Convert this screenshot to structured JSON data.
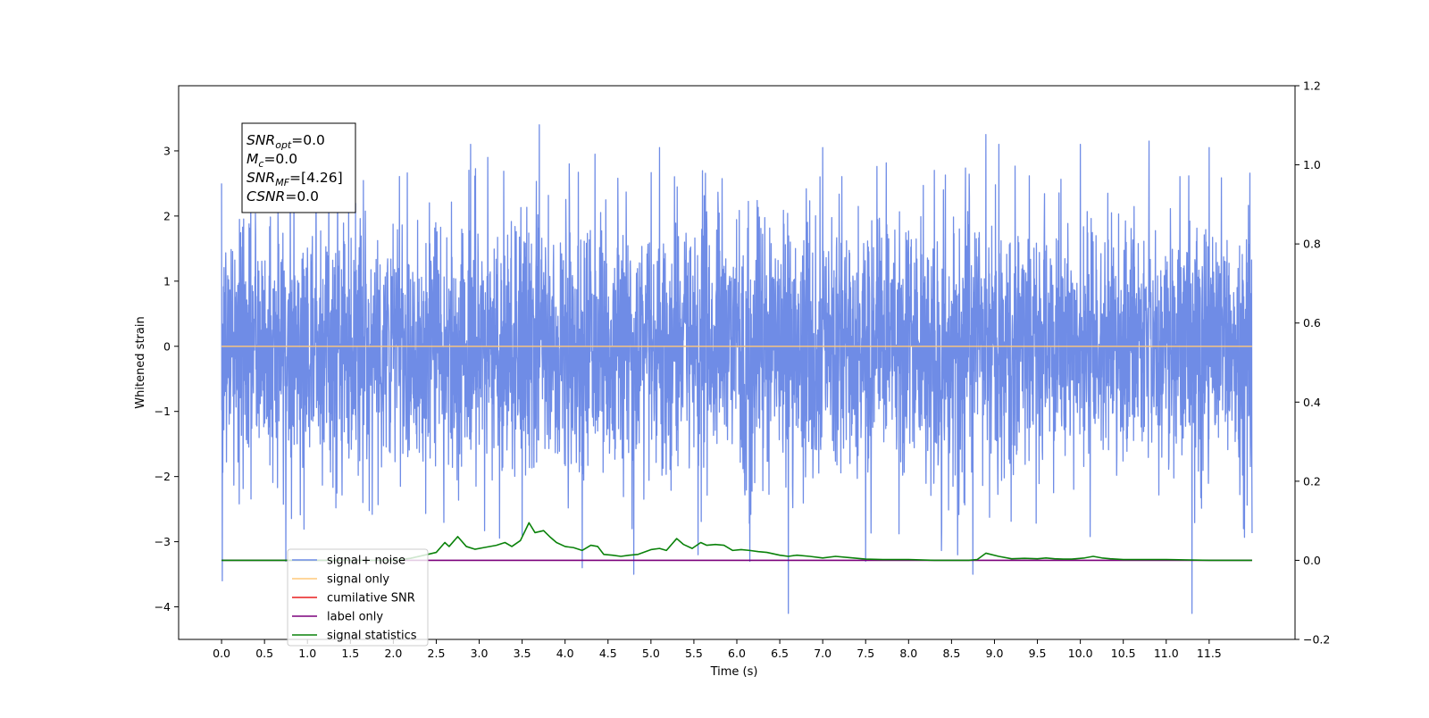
{
  "chart_data": {
    "type": "line",
    "xlabel": "Time (s)",
    "ylabel": "Whitened strain",
    "xlim": [
      -0.5,
      12.5
    ],
    "ylim": [
      -4.5,
      4.0
    ],
    "y2lim": [
      -0.2,
      1.2
    ],
    "x_ticks": [
      0.0,
      0.5,
      1.0,
      1.5,
      2.0,
      2.5,
      3.0,
      3.5,
      4.0,
      4.5,
      5.0,
      5.5,
      6.0,
      6.5,
      7.0,
      7.5,
      8.0,
      8.5,
      9.0,
      9.5,
      10.0,
      10.5,
      11.0,
      11.5
    ],
    "x_tick_labels": [
      "0.0",
      "0.5",
      "1.0",
      "1.5",
      "2.0",
      "2.5",
      "3.0",
      "3.5",
      "4.0",
      "4.5",
      "5.0",
      "5.5",
      "6.0",
      "6.5",
      "7.0",
      "7.5",
      "8.0",
      "8.5",
      "9.0",
      "9.5",
      "10.0",
      "10.5",
      "11.0",
      "11.5"
    ],
    "y_ticks": [
      -4,
      -3,
      -2,
      -1,
      0,
      1,
      2,
      3
    ],
    "y_tick_labels": [
      "−4",
      "−3",
      "−2",
      "−1",
      "0",
      "1",
      "2",
      "3"
    ],
    "y2_ticks": [
      -0.2,
      0.0,
      0.2,
      0.4,
      0.6,
      0.8,
      1.0,
      1.2
    ],
    "y2_tick_labels": [
      "−0.2",
      "0.0",
      "0.2",
      "0.4",
      "0.6",
      "0.8",
      "1.0",
      "1.2"
    ],
    "legend_placement": "lower-left",
    "grid": false,
    "annotation": {
      "lines": [
        {
          "symbol": "SNR",
          "sub": "opt",
          "value": "=0.0"
        },
        {
          "symbol": "M",
          "sub": "c",
          "value": "=0.0"
        },
        {
          "symbol": "SNR",
          "sub": "MF",
          "value": "=[4.26]"
        },
        {
          "symbol": "CSNR",
          "sub": "",
          "value": "=0.0"
        }
      ]
    },
    "series": [
      {
        "name": "signal+ noise",
        "color": "#6f8ce6",
        "axis": "left",
        "kind": "noise",
        "x_range": [
          0.0,
          12.0
        ],
        "sigma": 1.0,
        "peaks": [
          [
            0.0,
            2.5
          ],
          [
            0.01,
            -3.6
          ],
          [
            0.75,
            -3.3
          ],
          [
            1.1,
            2.8
          ],
          [
            1.35,
            3.05
          ],
          [
            2.9,
            3.1
          ],
          [
            3.1,
            2.9
          ],
          [
            3.5,
            -2.9
          ],
          [
            3.7,
            3.4
          ],
          [
            4.05,
            2.8
          ],
          [
            4.2,
            -3.4
          ],
          [
            4.35,
            2.95
          ],
          [
            4.8,
            3.6
          ],
          [
            4.8,
            -3.5
          ],
          [
            5.1,
            3.05
          ],
          [
            5.55,
            -3.2
          ],
          [
            6.15,
            3.05
          ],
          [
            6.15,
            -3.3
          ],
          [
            6.6,
            -4.1
          ],
          [
            7.0,
            3.05
          ],
          [
            7.5,
            3.4
          ],
          [
            7.5,
            -3.3
          ],
          [
            8.3,
            2.7
          ],
          [
            8.75,
            -3.5
          ],
          [
            8.9,
            3.25
          ],
          [
            9.05,
            3.1
          ],
          [
            10.0,
            3.1
          ],
          [
            10.8,
            3.15
          ],
          [
            11.3,
            -4.1
          ],
          [
            11.5,
            3.05
          ],
          [
            11.9,
            2.6
          ],
          [
            11.9,
            -2.8
          ]
        ]
      },
      {
        "name": "signal only",
        "color": "#ffc87a",
        "axis": "left",
        "kind": "constant",
        "value": 0.0,
        "x_range": [
          0.0,
          12.0
        ]
      },
      {
        "name": "cumilative SNR",
        "color": "#e81e1e",
        "axis": "right",
        "kind": "none",
        "points": []
      },
      {
        "name": "label only",
        "color": "#7b007b",
        "axis": "right",
        "kind": "line",
        "points": [
          [
            0.0,
            0.0
          ],
          [
            12.0,
            0.0
          ]
        ]
      },
      {
        "name": "signal statistics",
        "color": "#0a820a",
        "axis": "right",
        "kind": "line",
        "points": [
          [
            0.0,
            0.0
          ],
          [
            0.5,
            0.0
          ],
          [
            1.0,
            0.0
          ],
          [
            1.5,
            0.0
          ],
          [
            2.0,
            0.0
          ],
          [
            2.2,
            0.005
          ],
          [
            2.4,
            0.015
          ],
          [
            2.5,
            0.02
          ],
          [
            2.6,
            0.045
          ],
          [
            2.65,
            0.035
          ],
          [
            2.75,
            0.06
          ],
          [
            2.85,
            0.035
          ],
          [
            2.95,
            0.028
          ],
          [
            3.05,
            0.032
          ],
          [
            3.2,
            0.038
          ],
          [
            3.3,
            0.045
          ],
          [
            3.38,
            0.035
          ],
          [
            3.48,
            0.05
          ],
          [
            3.58,
            0.095
          ],
          [
            3.65,
            0.07
          ],
          [
            3.75,
            0.075
          ],
          [
            3.82,
            0.06
          ],
          [
            3.9,
            0.045
          ],
          [
            4.0,
            0.035
          ],
          [
            4.1,
            0.032
          ],
          [
            4.2,
            0.025
          ],
          [
            4.3,
            0.038
          ],
          [
            4.38,
            0.035
          ],
          [
            4.45,
            0.015
          ],
          [
            4.55,
            0.013
          ],
          [
            4.65,
            0.01
          ],
          [
            4.75,
            0.013
          ],
          [
            4.85,
            0.015
          ],
          [
            5.0,
            0.027
          ],
          [
            5.1,
            0.03
          ],
          [
            5.18,
            0.025
          ],
          [
            5.3,
            0.055
          ],
          [
            5.38,
            0.04
          ],
          [
            5.48,
            0.03
          ],
          [
            5.58,
            0.045
          ],
          [
            5.65,
            0.038
          ],
          [
            5.75,
            0.04
          ],
          [
            5.85,
            0.038
          ],
          [
            5.95,
            0.025
          ],
          [
            6.05,
            0.027
          ],
          [
            6.15,
            0.025
          ],
          [
            6.25,
            0.022
          ],
          [
            6.35,
            0.02
          ],
          [
            6.5,
            0.013
          ],
          [
            6.6,
            0.01
          ],
          [
            6.7,
            0.013
          ],
          [
            6.85,
            0.01
          ],
          [
            7.0,
            0.006
          ],
          [
            7.15,
            0.01
          ],
          [
            7.3,
            0.007
          ],
          [
            7.5,
            0.003
          ],
          [
            7.7,
            0.002
          ],
          [
            8.0,
            0.002
          ],
          [
            8.3,
            0.0
          ],
          [
            8.7,
            0.0
          ],
          [
            8.8,
            0.002
          ],
          [
            8.9,
            0.018
          ],
          [
            9.05,
            0.01
          ],
          [
            9.2,
            0.004
          ],
          [
            9.35,
            0.005
          ],
          [
            9.5,
            0.004
          ],
          [
            9.6,
            0.006
          ],
          [
            9.7,
            0.004
          ],
          [
            9.8,
            0.003
          ],
          [
            9.9,
            0.003
          ],
          [
            10.05,
            0.006
          ],
          [
            10.15,
            0.01
          ],
          [
            10.25,
            0.006
          ],
          [
            10.35,
            0.004
          ],
          [
            10.5,
            0.002
          ],
          [
            11.0,
            0.002
          ],
          [
            11.5,
            0.0
          ],
          [
            12.0,
            0.0
          ]
        ]
      }
    ]
  }
}
